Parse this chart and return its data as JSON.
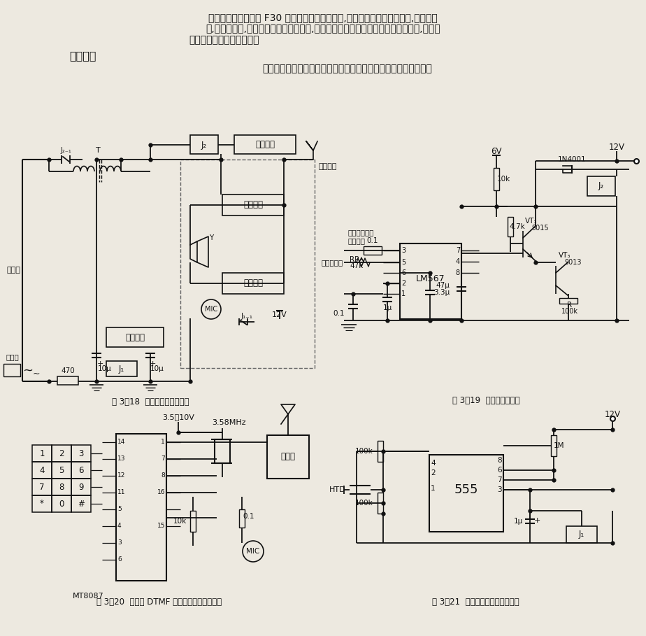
{
  "bg_color": "#ede9e0",
  "text_color": "#111111",
  "line_color": "#111111",
  "para1": "本文介绍了如何利用 F30 型对讲机改制无绳电话,利用此法改制的无绳电话,不但成本",
  "para2": "低,通话距离远,而且不占用其他专用频率,不会对其他通信设备及家用电器造成干扰,其通话",
  "para3": "效果完全可满足一般要求。",
  "section": "工作原理",
  "body": "本装置的工作原理包括铃声传呼、遥控摘机、手拨号和收发转换。",
  "cap18": "图 3－18  铃声传呼工作原理图",
  "cap19": "图 3－19  摘机电路原理图",
  "cap20": "图 3－20  手机的 DTMF 双音频拨号电路原理图",
  "cap21": "图 3－21  收发自动转换电路原理图"
}
